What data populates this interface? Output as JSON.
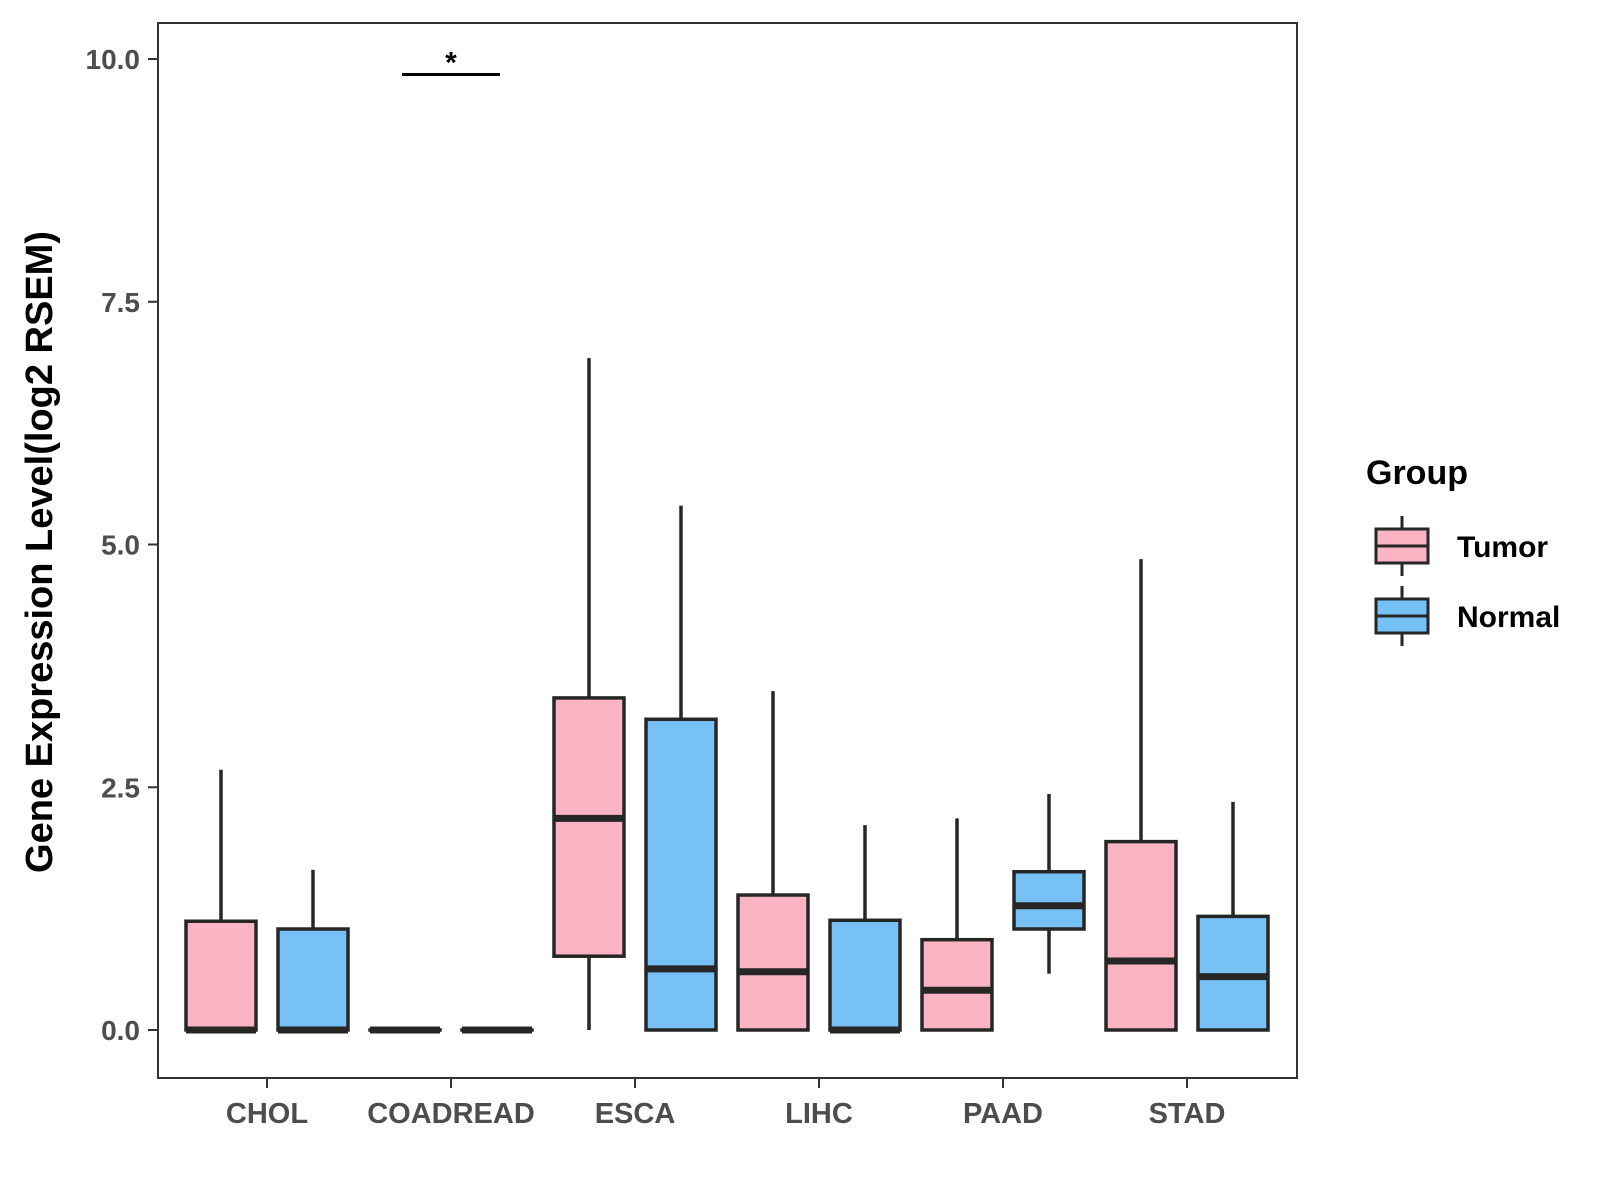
{
  "chart_data": {
    "type": "boxplot",
    "ylabel": "Gene Expression Level(log2 RSEM)",
    "xlabel": "",
    "ylim": [
      -0.5,
      10.4
    ],
    "yticks": [
      0.0,
      2.5,
      5.0,
      7.5,
      10.0
    ],
    "ytick_labels": [
      "0.0",
      "2.5",
      "5.0",
      "7.5",
      "10.0"
    ],
    "categories": [
      "CHOL",
      "COADREAD",
      "ESCA",
      "LIHC",
      "PAAD",
      "STAD"
    ],
    "legend": {
      "title": "Group",
      "entries": [
        {
          "name": "Tumor",
          "color": "#fbb4c3"
        },
        {
          "name": "Normal",
          "color": "#77c1f7"
        }
      ]
    },
    "series": [
      {
        "name": "Tumor",
        "color": "#fbb4c3",
        "boxes": [
          {
            "category": "CHOL",
            "min": 0.0,
            "q1": 0.0,
            "median": 0.0,
            "q3": 1.12,
            "max": 2.68
          },
          {
            "category": "COADREAD",
            "min": 0.0,
            "q1": 0.0,
            "median": 0.0,
            "q3": 0.0,
            "max": 0.0
          },
          {
            "category": "ESCA",
            "min": 0.0,
            "q1": 0.76,
            "median": 2.18,
            "q3": 3.42,
            "max": 6.92
          },
          {
            "category": "LIHC",
            "min": 0.0,
            "q1": 0.0,
            "median": 0.6,
            "q3": 1.39,
            "max": 3.49
          },
          {
            "category": "PAAD",
            "min": 0.0,
            "q1": 0.0,
            "median": 0.41,
            "q3": 0.93,
            "max": 2.18
          },
          {
            "category": "STAD",
            "min": 0.0,
            "q1": 0.0,
            "median": 0.71,
            "q3": 1.94,
            "max": 4.85
          }
        ]
      },
      {
        "name": "Normal",
        "color": "#77c1f7",
        "boxes": [
          {
            "category": "CHOL",
            "min": 0.0,
            "q1": 0.0,
            "median": 0.0,
            "q3": 1.04,
            "max": 1.65
          },
          {
            "category": "COADREAD",
            "min": 0.0,
            "q1": 0.0,
            "median": 0.0,
            "q3": 0.0,
            "max": 0.0
          },
          {
            "category": "ESCA",
            "min": 0.0,
            "q1": 0.0,
            "median": 0.63,
            "q3": 3.2,
            "max": 5.4
          },
          {
            "category": "LIHC",
            "min": 0.0,
            "q1": 0.0,
            "median": 0.0,
            "q3": 1.13,
            "max": 2.11
          },
          {
            "category": "PAAD",
            "min": 0.58,
            "q1": 1.04,
            "median": 1.28,
            "q3": 1.63,
            "max": 2.43
          },
          {
            "category": "STAD",
            "min": 0.0,
            "q1": 0.0,
            "median": 0.55,
            "q3": 1.17,
            "max": 2.35
          }
        ]
      }
    ],
    "annotations": [
      {
        "category": "COADREAD",
        "text": "*",
        "y": 9.84
      }
    ]
  }
}
